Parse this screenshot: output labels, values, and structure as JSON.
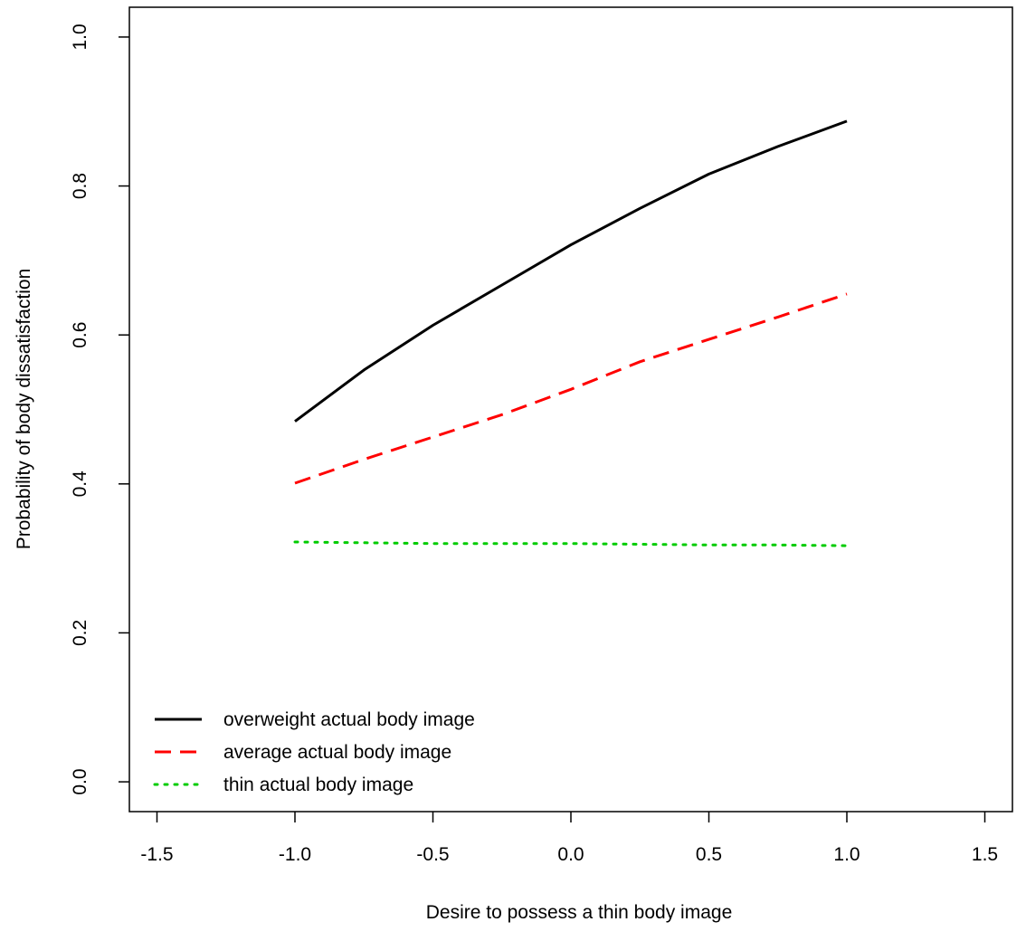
{
  "chart_data": {
    "type": "line",
    "title": "",
    "xlabel": "Desire to possess a thin body image",
    "ylabel": "Probability of body dissatisfaction",
    "xlim": [
      -1.6,
      1.6
    ],
    "ylim": [
      -0.04,
      1.04
    ],
    "x_ticks": [
      "-1.5",
      "-1.0",
      "-0.5",
      "0.0",
      "0.5",
      "1.0",
      "1.5"
    ],
    "y_ticks": [
      "0.0",
      "0.2",
      "0.4",
      "0.6",
      "0.8",
      "1.0"
    ],
    "grid": false,
    "legend_position": "bottom-left",
    "x": [
      -1.0,
      -0.75,
      -0.5,
      -0.25,
      0.0,
      0.25,
      0.5,
      0.75,
      1.0
    ],
    "series": [
      {
        "name": "overweight actual body image",
        "color": "#000000",
        "line_style": "solid",
        "values": [
          0.484,
          0.553,
          0.613,
          0.667,
          0.721,
          0.77,
          0.816,
          0.853,
          0.887
        ]
      },
      {
        "name": "average actual body image",
        "color": "#ff0000",
        "line_style": "dashed",
        "values": [
          0.401,
          0.433,
          0.463,
          0.493,
          0.527,
          0.564,
          0.594,
          0.624,
          0.655
        ]
      },
      {
        "name": "thin actual body image",
        "color": "#00cc00",
        "line_style": "dotted",
        "values": [
          0.322,
          0.321,
          0.32,
          0.32,
          0.32,
          0.319,
          0.318,
          0.318,
          0.317
        ]
      }
    ]
  }
}
